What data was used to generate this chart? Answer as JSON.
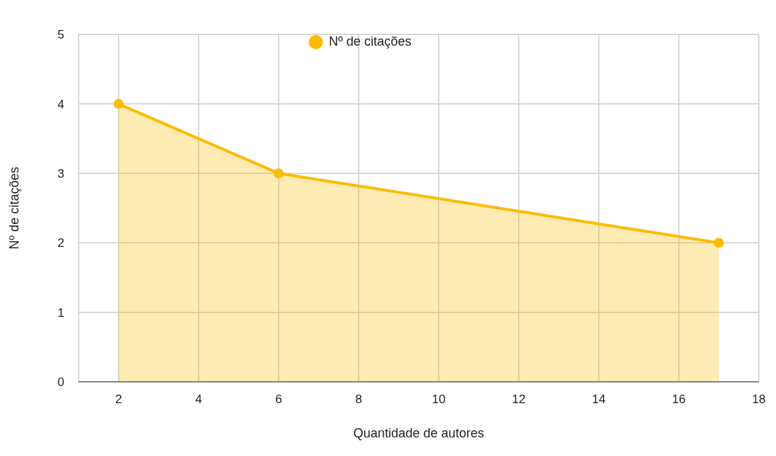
{
  "chart_data": {
    "type": "area",
    "xlabel": "Quantidade de autores",
    "ylabel": "Nº de citações",
    "x": [
      2,
      6,
      17
    ],
    "series": [
      {
        "name": "Nº de citações",
        "color": "#fbbc04",
        "values": [
          4,
          3,
          2
        ]
      }
    ],
    "xlim": [
      1,
      18
    ],
    "xticks": [
      2,
      4,
      6,
      8,
      10,
      12,
      14,
      16,
      18
    ],
    "ylim": [
      0,
      5
    ],
    "yticks": [
      0,
      1,
      2,
      3,
      4,
      5
    ],
    "grid": true,
    "legend": "top",
    "marker": "circle",
    "line_style": "solid"
  }
}
